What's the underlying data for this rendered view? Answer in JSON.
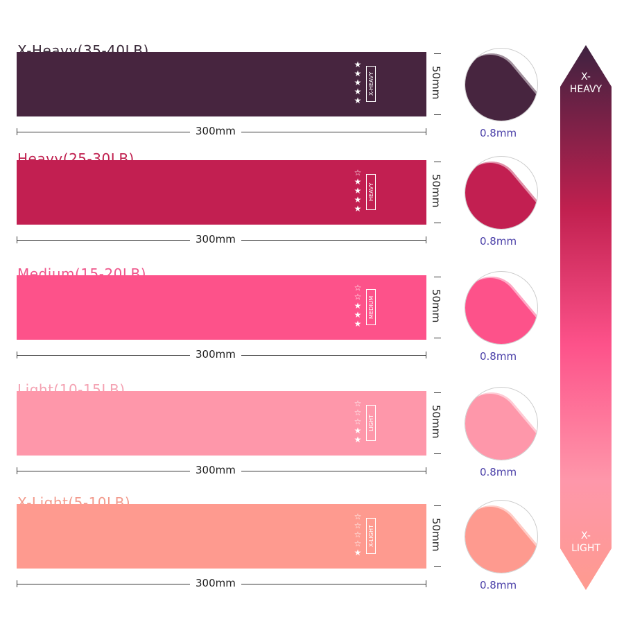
{
  "bands": [
    {
      "title": "X-Heavy(35-40LB)",
      "label": "X-HEAVY",
      "stars": 5,
      "length": "300mm",
      "width": "50mm",
      "thickness": "0.8mm",
      "color": "#47253f",
      "title_color": "#3b2b3a"
    },
    {
      "title": "Heavy(25-30LB)",
      "label": "HEAVY",
      "stars": 4,
      "length": "300mm",
      "width": "50mm",
      "thickness": "0.8mm",
      "color": "#c21f51",
      "title_color": "#c0204f"
    },
    {
      "title": "Medium(15-20LB)",
      "label": "MEDIUM",
      "stars": 3,
      "length": "300mm",
      "width": "50mm",
      "thickness": "0.8mm",
      "color": "#fd528a",
      "title_color": "#ee558a"
    },
    {
      "title": "Light(10-15LB)",
      "label": "LIGHT",
      "stars": 2,
      "length": "300mm",
      "width": "50mm",
      "thickness": "0.8mm",
      "color": "#fe97aa",
      "title_color": "#f4a3b3"
    },
    {
      "title": "X-Light(5-10LB)",
      "label": "X-LIGHT",
      "stars": 1,
      "length": "300mm",
      "width": "50mm",
      "thickness": "0.8mm",
      "color": "#fe9a8f",
      "title_color": "#f29a8c"
    }
  ],
  "scale": {
    "top": "X-\nHEAVY",
    "bottom": "X-\nLIGHT"
  }
}
